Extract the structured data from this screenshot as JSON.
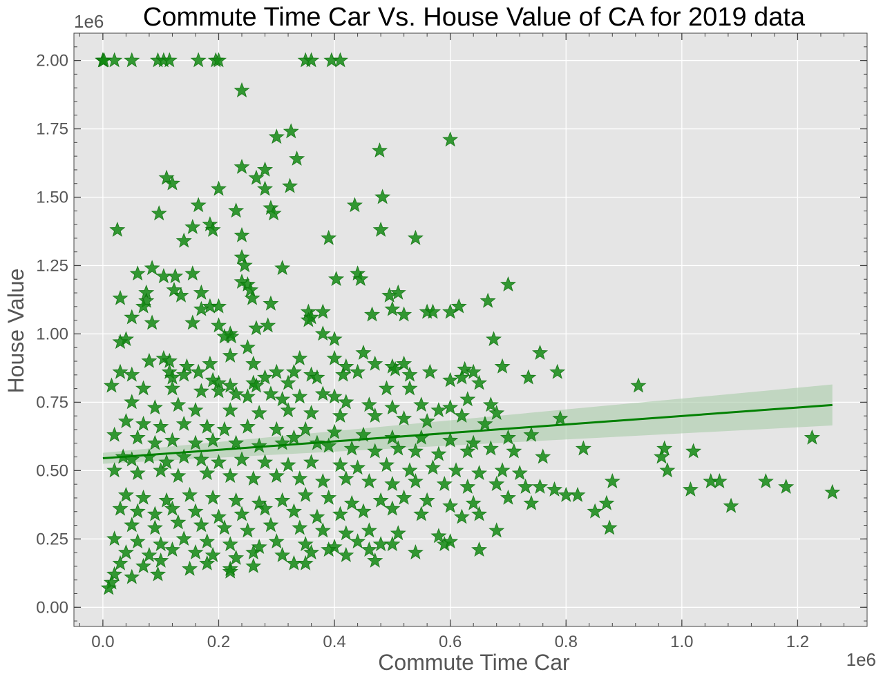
{
  "chart_data": {
    "type": "scatter",
    "title": "Commute Time Car  Vs. House Value of CA for 2019 data",
    "xlabel": "Commute Time Car",
    "ylabel": "House Value",
    "x_offset_label": "1e6",
    "y_offset_label": "1e6",
    "xlim": [
      -0.05,
      1.32
    ],
    "ylim": [
      -0.07,
      2.1
    ],
    "xticks": [
      0.0,
      0.2,
      0.4,
      0.6,
      0.8,
      1.0,
      1.2
    ],
    "xtick_labels": [
      "0.0",
      "0.2",
      "0.4",
      "0.6",
      "0.8",
      "1.0",
      "1.2"
    ],
    "yticks": [
      0.0,
      0.25,
      0.5,
      0.75,
      1.0,
      1.25,
      1.5,
      1.75,
      2.0
    ],
    "ytick_labels": [
      "0.00",
      "0.25",
      "0.50",
      "0.75",
      "1.00",
      "1.25",
      "1.50",
      "1.75",
      "2.00"
    ],
    "grid": true,
    "background": "#e5e5e5",
    "marker": "star",
    "marker_color": "#138a13",
    "line_color": "#008000",
    "band_color": "#a8cba8",
    "regression": {
      "x": [
        0.0,
        1.26
      ],
      "y": [
        0.545,
        0.74
      ],
      "ci_lower": [
        0.525,
        0.665
      ],
      "ci_upper": [
        0.565,
        0.815
      ]
    },
    "points": [
      [
        0.0,
        2.0
      ],
      [
        0.0,
        2.0
      ],
      [
        0.002,
        2.0
      ],
      [
        0.02,
        2.0
      ],
      [
        0.05,
        2.0
      ],
      [
        0.095,
        2.0
      ],
      [
        0.105,
        2.0
      ],
      [
        0.115,
        2.0
      ],
      [
        0.165,
        2.0
      ],
      [
        0.195,
        2.0
      ],
      [
        0.2,
        2.0
      ],
      [
        0.35,
        2.0
      ],
      [
        0.36,
        2.0
      ],
      [
        0.395,
        2.0
      ],
      [
        0.41,
        2.0
      ],
      [
        0.24,
        1.89
      ],
      [
        0.3,
        1.72
      ],
      [
        0.325,
        1.74
      ],
      [
        0.478,
        1.67
      ],
      [
        0.6,
        1.71
      ],
      [
        0.335,
        1.64
      ],
      [
        0.24,
        1.61
      ],
      [
        0.28,
        1.6
      ],
      [
        0.265,
        1.57
      ],
      [
        0.11,
        1.57
      ],
      [
        0.12,
        1.55
      ],
      [
        0.28,
        1.53
      ],
      [
        0.2,
        1.53
      ],
      [
        0.323,
        1.54
      ],
      [
        0.483,
        1.5
      ],
      [
        0.165,
        1.47
      ],
      [
        0.29,
        1.46
      ],
      [
        0.23,
        1.45
      ],
      [
        0.435,
        1.47
      ],
      [
        0.295,
        1.44
      ],
      [
        0.097,
        1.44
      ],
      [
        0.185,
        1.4
      ],
      [
        0.155,
        1.39
      ],
      [
        0.19,
        1.38
      ],
      [
        0.025,
        1.38
      ],
      [
        0.48,
        1.38
      ],
      [
        0.24,
        1.36
      ],
      [
        0.54,
        1.35
      ],
      [
        0.39,
        1.35
      ],
      [
        0.14,
        1.34
      ],
      [
        0.24,
        1.28
      ],
      [
        0.245,
        1.25
      ],
      [
        0.31,
        1.24
      ],
      [
        0.085,
        1.24
      ],
      [
        0.06,
        1.22
      ],
      [
        0.155,
        1.22
      ],
      [
        0.44,
        1.22
      ],
      [
        0.445,
        1.2
      ],
      [
        0.105,
        1.21
      ],
      [
        0.125,
        1.21
      ],
      [
        0.403,
        1.2
      ],
      [
        0.7,
        1.18
      ],
      [
        0.24,
        1.19
      ],
      [
        0.25,
        1.18
      ],
      [
        0.255,
        1.16
      ],
      [
        0.123,
        1.16
      ],
      [
        0.075,
        1.15
      ],
      [
        0.135,
        1.14
      ],
      [
        0.17,
        1.15
      ],
      [
        0.258,
        1.13
      ],
      [
        0.495,
        1.14
      ],
      [
        0.51,
        1.15
      ],
      [
        0.03,
        1.13
      ],
      [
        0.075,
        1.12
      ],
      [
        0.185,
        1.1
      ],
      [
        0.29,
        1.11
      ],
      [
        0.2,
        1.1
      ],
      [
        0.665,
        1.12
      ],
      [
        0.615,
        1.1
      ],
      [
        0.5,
        1.09
      ],
      [
        0.355,
        1.08
      ],
      [
        0.36,
        1.06
      ],
      [
        0.38,
        1.08
      ],
      [
        0.07,
        1.1
      ],
      [
        0.17,
        1.09
      ],
      [
        0.56,
        1.08
      ],
      [
        0.57,
        1.08
      ],
      [
        0.6,
        1.08
      ],
      [
        0.05,
        1.06
      ],
      [
        0.085,
        1.04
      ],
      [
        0.155,
        1.04
      ],
      [
        0.2,
        1.03
      ],
      [
        0.265,
        1.02
      ],
      [
        0.52,
        1.07
      ],
      [
        0.465,
        1.07
      ],
      [
        0.355,
        1.05
      ],
      [
        0.285,
        1.03
      ],
      [
        0.22,
        1.0
      ],
      [
        0.222,
        0.99
      ],
      [
        0.04,
        0.98
      ],
      [
        0.03,
        0.97
      ],
      [
        0.38,
        1.0
      ],
      [
        0.4,
        0.98
      ],
      [
        0.675,
        0.98
      ],
      [
        0.25,
        0.95
      ],
      [
        0.21,
        0.99
      ],
      [
        0.45,
        0.93
      ],
      [
        0.52,
        0.89
      ],
      [
        0.565,
        0.86
      ],
      [
        0.755,
        0.93
      ],
      [
        0.105,
        0.91
      ],
      [
        0.115,
        0.9
      ],
      [
        0.08,
        0.9
      ],
      [
        0.145,
        0.88
      ],
      [
        0.22,
        0.92
      ],
      [
        0.26,
        0.89
      ],
      [
        0.34,
        0.91
      ],
      [
        0.4,
        0.91
      ],
      [
        0.42,
        0.88
      ],
      [
        0.47,
        0.89
      ],
      [
        0.5,
        0.88
      ],
      [
        0.505,
        0.87
      ],
      [
        0.53,
        0.85
      ],
      [
        0.69,
        0.88
      ],
      [
        0.785,
        0.86
      ],
      [
        0.925,
        0.81
      ],
      [
        0.735,
        0.84
      ],
      [
        0.625,
        0.87
      ],
      [
        0.64,
        0.86
      ],
      [
        0.015,
        0.81
      ],
      [
        0.03,
        0.86
      ],
      [
        0.05,
        0.85
      ],
      [
        0.115,
        0.86
      ],
      [
        0.12,
        0.84
      ],
      [
        0.14,
        0.85
      ],
      [
        0.165,
        0.86
      ],
      [
        0.185,
        0.89
      ],
      [
        0.19,
        0.83
      ],
      [
        0.2,
        0.82
      ],
      [
        0.22,
        0.81
      ],
      [
        0.26,
        0.82
      ],
      [
        0.265,
        0.81
      ],
      [
        0.28,
        0.84
      ],
      [
        0.3,
        0.86
      ],
      [
        0.32,
        0.82
      ],
      [
        0.33,
        0.86
      ],
      [
        0.36,
        0.85
      ],
      [
        0.37,
        0.84
      ],
      [
        0.415,
        0.85
      ],
      [
        0.44,
        0.86
      ],
      [
        0.49,
        0.8
      ],
      [
        0.53,
        0.8
      ],
      [
        0.6,
        0.83
      ],
      [
        0.62,
        0.84
      ],
      [
        0.65,
        0.82
      ],
      [
        0.07,
        0.8
      ],
      [
        0.12,
        0.8
      ],
      [
        0.17,
        0.79
      ],
      [
        0.2,
        0.79
      ],
      [
        0.23,
        0.78
      ],
      [
        0.25,
        0.77
      ],
      [
        0.29,
        0.78
      ],
      [
        0.31,
        0.76
      ],
      [
        0.34,
        0.77
      ],
      [
        0.38,
        0.78
      ],
      [
        0.4,
        0.77
      ],
      [
        0.42,
        0.75
      ],
      [
        0.46,
        0.74
      ],
      [
        0.5,
        0.73
      ],
      [
        0.55,
        0.74
      ],
      [
        0.58,
        0.72
      ],
      [
        0.6,
        0.73
      ],
      [
        0.63,
        0.76
      ],
      [
        0.67,
        0.74
      ],
      [
        0.05,
        0.75
      ],
      [
        0.09,
        0.73
      ],
      [
        0.13,
        0.74
      ],
      [
        0.16,
        0.72
      ],
      [
        0.22,
        0.72
      ],
      [
        0.27,
        0.71
      ],
      [
        0.32,
        0.72
      ],
      [
        0.36,
        0.71
      ],
      [
        0.41,
        0.7
      ],
      [
        0.47,
        0.7
      ],
      [
        0.52,
        0.69
      ],
      [
        0.56,
        0.68
      ],
      [
        0.62,
        0.7
      ],
      [
        0.66,
        0.67
      ],
      [
        0.68,
        0.71
      ],
      [
        0.79,
        0.69
      ],
      [
        0.04,
        0.68
      ],
      [
        0.07,
        0.67
      ],
      [
        0.1,
        0.66
      ],
      [
        0.14,
        0.67
      ],
      [
        0.18,
        0.66
      ],
      [
        0.21,
        0.65
      ],
      [
        0.25,
        0.66
      ],
      [
        0.3,
        0.65
      ],
      [
        0.35,
        0.65
      ],
      [
        0.4,
        0.64
      ],
      [
        0.45,
        0.63
      ],
      [
        0.5,
        0.62
      ],
      [
        0.55,
        0.62
      ],
      [
        0.6,
        0.61
      ],
      [
        0.64,
        0.6
      ],
      [
        0.7,
        0.62
      ],
      [
        0.74,
        0.63
      ],
      [
        0.02,
        0.63
      ],
      [
        0.06,
        0.62
      ],
      [
        0.09,
        0.6
      ],
      [
        0.12,
        0.61
      ],
      [
        0.16,
        0.6
      ],
      [
        0.19,
        0.61
      ],
      [
        0.23,
        0.6
      ],
      [
        0.27,
        0.59
      ],
      [
        0.31,
        0.6
      ],
      [
        0.33,
        0.62
      ],
      [
        0.37,
        0.6
      ],
      [
        0.39,
        0.59
      ],
      [
        0.43,
        0.58
      ],
      [
        0.47,
        0.57
      ],
      [
        0.51,
        0.58
      ],
      [
        0.54,
        0.57
      ],
      [
        0.58,
        0.56
      ],
      [
        0.63,
        0.57
      ],
      [
        0.67,
        0.58
      ],
      [
        0.71,
        0.57
      ],
      [
        0.76,
        0.55
      ],
      [
        0.83,
        0.58
      ],
      [
        0.97,
        0.58
      ],
      [
        1.02,
        0.57
      ],
      [
        0.965,
        0.55
      ],
      [
        0.975,
        0.5
      ],
      [
        0.035,
        0.55
      ],
      [
        0.05,
        0.54
      ],
      [
        0.08,
        0.55
      ],
      [
        0.11,
        0.53
      ],
      [
        0.14,
        0.55
      ],
      [
        0.17,
        0.54
      ],
      [
        0.2,
        0.53
      ],
      [
        0.24,
        0.54
      ],
      [
        0.28,
        0.53
      ],
      [
        0.32,
        0.52
      ],
      [
        0.36,
        0.53
      ],
      [
        0.41,
        0.52
      ],
      [
        0.44,
        0.51
      ],
      [
        0.49,
        0.52
      ],
      [
        0.53,
        0.5
      ],
      [
        0.57,
        0.51
      ],
      [
        0.61,
        0.5
      ],
      [
        0.65,
        0.49
      ],
      [
        0.69,
        0.5
      ],
      [
        0.72,
        0.49
      ],
      [
        0.02,
        0.5
      ],
      [
        0.06,
        0.49
      ],
      [
        0.1,
        0.5
      ],
      [
        0.13,
        0.48
      ],
      [
        0.18,
        0.49
      ],
      [
        0.22,
        0.48
      ],
      [
        0.26,
        0.47
      ],
      [
        0.3,
        0.48
      ],
      [
        0.34,
        0.47
      ],
      [
        0.38,
        0.46
      ],
      [
        0.42,
        0.47
      ],
      [
        0.46,
        0.46
      ],
      [
        0.5,
        0.45
      ],
      [
        0.54,
        0.46
      ],
      [
        0.59,
        0.45
      ],
      [
        0.63,
        0.44
      ],
      [
        0.68,
        0.45
      ],
      [
        0.73,
        0.44
      ],
      [
        0.78,
        0.43
      ],
      [
        0.88,
        0.46
      ],
      [
        1.015,
        0.43
      ],
      [
        1.05,
        0.46
      ],
      [
        1.065,
        0.46
      ],
      [
        1.145,
        0.46
      ],
      [
        1.18,
        0.44
      ],
      [
        1.26,
        0.42
      ],
      [
        1.225,
        0.62
      ],
      [
        0.755,
        0.44
      ],
      [
        0.82,
        0.41
      ],
      [
        0.87,
        0.38
      ],
      [
        0.85,
        0.35
      ],
      [
        0.875,
        0.29
      ],
      [
        1.085,
        0.37
      ],
      [
        0.04,
        0.41
      ],
      [
        0.07,
        0.4
      ],
      [
        0.11,
        0.39
      ],
      [
        0.15,
        0.41
      ],
      [
        0.19,
        0.4
      ],
      [
        0.23,
        0.39
      ],
      [
        0.27,
        0.38
      ],
      [
        0.31,
        0.39
      ],
      [
        0.35,
        0.41
      ],
      [
        0.39,
        0.4
      ],
      [
        0.43,
        0.38
      ],
      [
        0.48,
        0.39
      ],
      [
        0.52,
        0.4
      ],
      [
        0.56,
        0.39
      ],
      [
        0.6,
        0.37
      ],
      [
        0.64,
        0.38
      ],
      [
        0.7,
        0.4
      ],
      [
        0.74,
        0.38
      ],
      [
        0.8,
        0.41
      ],
      [
        0.03,
        0.36
      ],
      [
        0.06,
        0.35
      ],
      [
        0.09,
        0.34
      ],
      [
        0.12,
        0.36
      ],
      [
        0.16,
        0.35
      ],
      [
        0.2,
        0.33
      ],
      [
        0.24,
        0.34
      ],
      [
        0.28,
        0.36
      ],
      [
        0.33,
        0.35
      ],
      [
        0.37,
        0.33
      ],
      [
        0.41,
        0.34
      ],
      [
        0.45,
        0.35
      ],
      [
        0.5,
        0.36
      ],
      [
        0.55,
        0.34
      ],
      [
        0.62,
        0.33
      ],
      [
        0.65,
        0.34
      ],
      [
        0.05,
        0.3
      ],
      [
        0.09,
        0.29
      ],
      [
        0.13,
        0.31
      ],
      [
        0.17,
        0.3
      ],
      [
        0.21,
        0.29
      ],
      [
        0.25,
        0.28
      ],
      [
        0.29,
        0.3
      ],
      [
        0.34,
        0.29
      ],
      [
        0.38,
        0.28
      ],
      [
        0.42,
        0.27
      ],
      [
        0.46,
        0.28
      ],
      [
        0.51,
        0.27
      ],
      [
        0.58,
        0.26
      ],
      [
        0.68,
        0.28
      ],
      [
        0.02,
        0.25
      ],
      [
        0.06,
        0.24
      ],
      [
        0.1,
        0.23
      ],
      [
        0.14,
        0.25
      ],
      [
        0.18,
        0.24
      ],
      [
        0.22,
        0.23
      ],
      [
        0.27,
        0.22
      ],
      [
        0.3,
        0.24
      ],
      [
        0.35,
        0.23
      ],
      [
        0.4,
        0.22
      ],
      [
        0.44,
        0.24
      ],
      [
        0.48,
        0.23
      ],
      [
        0.5,
        0.23
      ],
      [
        0.59,
        0.23
      ],
      [
        0.6,
        0.24
      ],
      [
        0.04,
        0.2
      ],
      [
        0.08,
        0.19
      ],
      [
        0.12,
        0.21
      ],
      [
        0.16,
        0.2
      ],
      [
        0.19,
        0.19
      ],
      [
        0.23,
        0.18
      ],
      [
        0.26,
        0.2
      ],
      [
        0.31,
        0.19
      ],
      [
        0.36,
        0.2
      ],
      [
        0.39,
        0.21
      ],
      [
        0.46,
        0.21
      ],
      [
        0.54,
        0.2
      ],
      [
        0.65,
        0.21
      ],
      [
        0.03,
        0.16
      ],
      [
        0.07,
        0.15
      ],
      [
        0.1,
        0.17
      ],
      [
        0.15,
        0.14
      ],
      [
        0.18,
        0.16
      ],
      [
        0.22,
        0.14
      ],
      [
        0.26,
        0.15
      ],
      [
        0.33,
        0.16
      ],
      [
        0.35,
        0.16
      ],
      [
        0.42,
        0.19
      ],
      [
        0.47,
        0.17
      ],
      [
        0.095,
        0.12
      ],
      [
        0.22,
        0.13
      ],
      [
        0.02,
        0.12
      ],
      [
        0.05,
        0.11
      ],
      [
        0.015,
        0.09
      ],
      [
        0.01,
        0.07
      ]
    ]
  }
}
